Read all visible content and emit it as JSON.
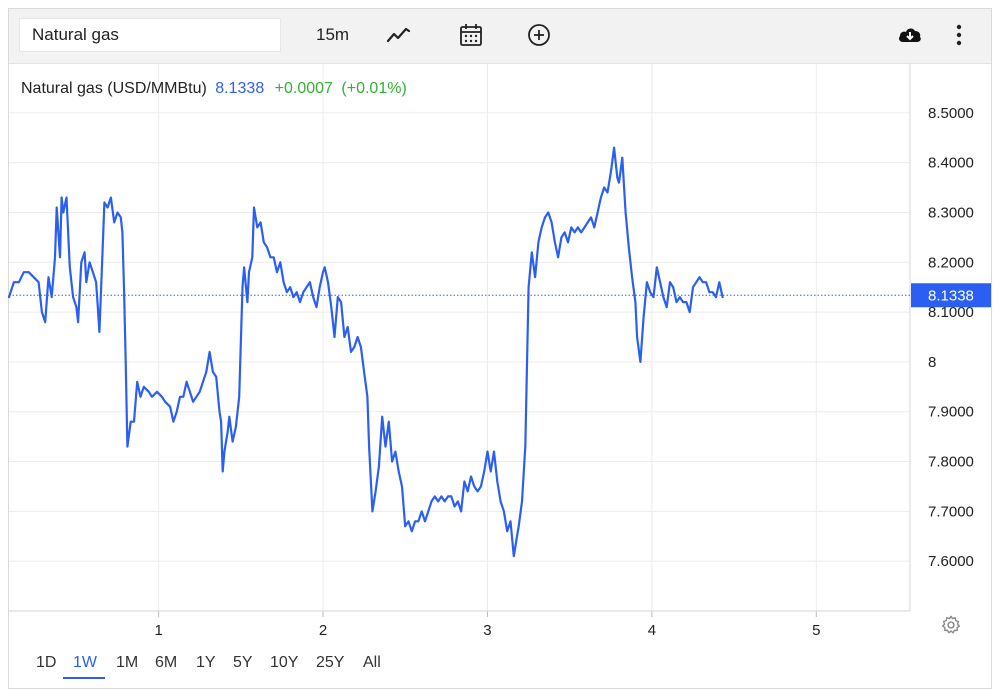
{
  "toolbar": {
    "search_value": "Natural gas",
    "interval": "15m",
    "icons": [
      "line-chart-icon",
      "calendar-icon",
      "add-circle-icon",
      "cloud-download-icon",
      "more-vertical-icon"
    ]
  },
  "legend": {
    "name": "Natural gas (USD/MMBtu)",
    "price": "8.1338",
    "change": "+0.0007",
    "change_pct": "(+0.01%)"
  },
  "ranges": [
    "1D",
    "1W",
    "1M",
    "6M",
    "1Y",
    "5Y",
    "10Y",
    "25Y",
    "All"
  ],
  "active_range": "1W",
  "colors": {
    "line": "#2a5ff2",
    "positive": "#32b233",
    "grid": "#ececec"
  },
  "chart_data": {
    "type": "line",
    "x_ticks": [
      {
        "x": 1,
        "label": "1"
      },
      {
        "x": 2,
        "label": "2"
      },
      {
        "x": 3,
        "label": "3"
      },
      {
        "x": 4,
        "label": "4"
      },
      {
        "x": 5,
        "label": "5"
      }
    ],
    "xlim": [
      0.09,
      5.57
    ],
    "ylim": [
      7.5,
      8.6
    ],
    "y_ticks": [
      7.6,
      7.7,
      7.8,
      7.9,
      8.0,
      8.1,
      8.2,
      8.3,
      8.4,
      8.5
    ],
    "y_tick_labels": [
      "7.6000",
      "7.7000",
      "7.8000",
      "7.9000",
      "8",
      "8.1000",
      "8.2000",
      "8.3000",
      "8.4000",
      "8.5000"
    ],
    "last_value": 8.1338,
    "last_label": "8.1338",
    "grid": true,
    "series": [
      {
        "values": [
          [
            0.09,
            8.13
          ],
          [
            0.12,
            8.16
          ],
          [
            0.15,
            8.16
          ],
          [
            0.18,
            8.18
          ],
          [
            0.21,
            8.18
          ],
          [
            0.24,
            8.17
          ],
          [
            0.27,
            8.16
          ],
          [
            0.29,
            8.1
          ],
          [
            0.31,
            8.08
          ],
          [
            0.33,
            8.17
          ],
          [
            0.35,
            8.13
          ],
          [
            0.37,
            8.21
          ],
          [
            0.38,
            8.31
          ],
          [
            0.4,
            8.21
          ],
          [
            0.41,
            8.33
          ],
          [
            0.42,
            8.3
          ],
          [
            0.44,
            8.33
          ],
          [
            0.46,
            8.19
          ],
          [
            0.48,
            8.13
          ],
          [
            0.5,
            8.11
          ],
          [
            0.51,
            8.08
          ],
          [
            0.53,
            8.2
          ],
          [
            0.55,
            8.22
          ],
          [
            0.56,
            8.16
          ],
          [
            0.58,
            8.2
          ],
          [
            0.6,
            8.18
          ],
          [
            0.62,
            8.16
          ],
          [
            0.63,
            8.11
          ],
          [
            0.64,
            8.06
          ],
          [
            0.66,
            8.23
          ],
          [
            0.67,
            8.32
          ],
          [
            0.69,
            8.31
          ],
          [
            0.71,
            8.33
          ],
          [
            0.73,
            8.28
          ],
          [
            0.75,
            8.3
          ],
          [
            0.77,
            8.29
          ],
          [
            0.78,
            8.26
          ],
          [
            0.79,
            8.14
          ],
          [
            0.8,
            8.0
          ],
          [
            0.81,
            7.83
          ],
          [
            0.83,
            7.88
          ],
          [
            0.85,
            7.88
          ],
          [
            0.87,
            7.96
          ],
          [
            0.89,
            7.93
          ],
          [
            0.91,
            7.95
          ],
          [
            0.94,
            7.94
          ],
          [
            0.96,
            7.93
          ],
          [
            0.99,
            7.94
          ],
          [
            1.02,
            7.93
          ],
          [
            1.04,
            7.92
          ],
          [
            1.07,
            7.91
          ],
          [
            1.09,
            7.88
          ],
          [
            1.11,
            7.9
          ],
          [
            1.13,
            7.93
          ],
          [
            1.15,
            7.93
          ],
          [
            1.17,
            7.96
          ],
          [
            1.19,
            7.94
          ],
          [
            1.21,
            7.92
          ],
          [
            1.23,
            7.93
          ],
          [
            1.25,
            7.94
          ],
          [
            1.27,
            7.96
          ],
          [
            1.29,
            7.98
          ],
          [
            1.31,
            8.02
          ],
          [
            1.33,
            7.98
          ],
          [
            1.35,
            7.97
          ],
          [
            1.37,
            7.9
          ],
          [
            1.38,
            7.88
          ],
          [
            1.39,
            7.78
          ],
          [
            1.4,
            7.82
          ],
          [
            1.42,
            7.86
          ],
          [
            1.43,
            7.89
          ],
          [
            1.45,
            7.84
          ],
          [
            1.47,
            7.87
          ],
          [
            1.49,
            7.93
          ],
          [
            1.51,
            8.15
          ],
          [
            1.52,
            8.19
          ],
          [
            1.54,
            8.12
          ],
          [
            1.55,
            8.18
          ],
          [
            1.57,
            8.21
          ],
          [
            1.58,
            8.31
          ],
          [
            1.6,
            8.27
          ],
          [
            1.62,
            8.28
          ],
          [
            1.64,
            8.24
          ],
          [
            1.66,
            8.23
          ],
          [
            1.68,
            8.21
          ],
          [
            1.7,
            8.21
          ],
          [
            1.72,
            8.18
          ],
          [
            1.74,
            8.2
          ],
          [
            1.76,
            8.16
          ],
          [
            1.78,
            8.14
          ],
          [
            1.8,
            8.15
          ],
          [
            1.82,
            8.13
          ],
          [
            1.84,
            8.14
          ],
          [
            1.86,
            8.12
          ],
          [
            1.88,
            8.14
          ],
          [
            1.9,
            8.15
          ],
          [
            1.92,
            8.16
          ],
          [
            1.94,
            8.13
          ],
          [
            1.96,
            8.11
          ],
          [
            1.98,
            8.15
          ],
          [
            2.0,
            8.18
          ],
          [
            2.01,
            8.19
          ],
          [
            2.03,
            8.16
          ],
          [
            2.05,
            8.11
          ],
          [
            2.07,
            8.05
          ],
          [
            2.09,
            8.13
          ],
          [
            2.11,
            8.12
          ],
          [
            2.13,
            8.05
          ],
          [
            2.15,
            8.07
          ],
          [
            2.17,
            8.02
          ],
          [
            2.19,
            8.03
          ],
          [
            2.21,
            8.05
          ],
          [
            2.23,
            8.03
          ],
          [
            2.25,
            7.98
          ],
          [
            2.27,
            7.93
          ],
          [
            2.28,
            7.83
          ],
          [
            2.3,
            7.7
          ],
          [
            2.32,
            7.74
          ],
          [
            2.34,
            7.79
          ],
          [
            2.36,
            7.89
          ],
          [
            2.38,
            7.83
          ],
          [
            2.4,
            7.88
          ],
          [
            2.42,
            7.8
          ],
          [
            2.44,
            7.82
          ],
          [
            2.46,
            7.78
          ],
          [
            2.48,
            7.75
          ],
          [
            2.5,
            7.67
          ],
          [
            2.52,
            7.68
          ],
          [
            2.54,
            7.66
          ],
          [
            2.56,
            7.68
          ],
          [
            2.58,
            7.68
          ],
          [
            2.6,
            7.7
          ],
          [
            2.62,
            7.68
          ],
          [
            2.64,
            7.7
          ],
          [
            2.66,
            7.72
          ],
          [
            2.68,
            7.73
          ],
          [
            2.7,
            7.72
          ],
          [
            2.72,
            7.73
          ],
          [
            2.74,
            7.72
          ],
          [
            2.76,
            7.73
          ],
          [
            2.78,
            7.73
          ],
          [
            2.8,
            7.71
          ],
          [
            2.82,
            7.72
          ],
          [
            2.84,
            7.7
          ],
          [
            2.86,
            7.76
          ],
          [
            2.88,
            7.74
          ],
          [
            2.9,
            7.77
          ],
          [
            2.92,
            7.75
          ],
          [
            2.94,
            7.74
          ],
          [
            2.96,
            7.75
          ],
          [
            2.98,
            7.78
          ],
          [
            3.0,
            7.82
          ],
          [
            3.02,
            7.78
          ],
          [
            3.04,
            7.82
          ],
          [
            3.06,
            7.76
          ],
          [
            3.08,
            7.72
          ],
          [
            3.1,
            7.7
          ],
          [
            3.12,
            7.66
          ],
          [
            3.14,
            7.68
          ],
          [
            3.16,
            7.61
          ],
          [
            3.18,
            7.65
          ],
          [
            3.19,
            7.67
          ],
          [
            3.21,
            7.72
          ],
          [
            3.23,
            7.83
          ],
          [
            3.25,
            8.15
          ],
          [
            3.27,
            8.22
          ],
          [
            3.29,
            8.17
          ],
          [
            3.31,
            8.24
          ],
          [
            3.33,
            8.27
          ],
          [
            3.35,
            8.29
          ],
          [
            3.37,
            8.3
          ],
          [
            3.39,
            8.28
          ],
          [
            3.41,
            8.24
          ],
          [
            3.43,
            8.21
          ],
          [
            3.45,
            8.25
          ],
          [
            3.47,
            8.26
          ],
          [
            3.49,
            8.24
          ],
          [
            3.51,
            8.27
          ],
          [
            3.53,
            8.26
          ],
          [
            3.55,
            8.27
          ],
          [
            3.57,
            8.26
          ],
          [
            3.59,
            8.27
          ],
          [
            3.61,
            8.28
          ],
          [
            3.63,
            8.29
          ],
          [
            3.65,
            8.27
          ],
          [
            3.67,
            8.3
          ],
          [
            3.69,
            8.33
          ],
          [
            3.71,
            8.35
          ],
          [
            3.73,
            8.34
          ],
          [
            3.75,
            8.38
          ],
          [
            3.77,
            8.43
          ],
          [
            3.79,
            8.37
          ],
          [
            3.8,
            8.36
          ],
          [
            3.82,
            8.41
          ],
          [
            3.84,
            8.3
          ],
          [
            3.86,
            8.23
          ],
          [
            3.88,
            8.17
          ],
          [
            3.9,
            8.12
          ],
          [
            3.91,
            8.05
          ],
          [
            3.93,
            8.0
          ],
          [
            3.95,
            8.09
          ],
          [
            3.97,
            8.16
          ],
          [
            3.99,
            8.14
          ],
          [
            4.01,
            8.13
          ],
          [
            4.03,
            8.19
          ],
          [
            4.05,
            8.16
          ],
          [
            4.07,
            8.13
          ],
          [
            4.09,
            8.11
          ],
          [
            4.11,
            8.16
          ],
          [
            4.13,
            8.15
          ],
          [
            4.15,
            8.12
          ],
          [
            4.17,
            8.13
          ],
          [
            4.19,
            8.12
          ],
          [
            4.21,
            8.12
          ],
          [
            4.23,
            8.1
          ],
          [
            4.25,
            8.15
          ],
          [
            4.27,
            8.16
          ],
          [
            4.29,
            8.17
          ],
          [
            4.31,
            8.16
          ],
          [
            4.33,
            8.16
          ],
          [
            4.35,
            8.14
          ],
          [
            4.37,
            8.14
          ],
          [
            4.39,
            8.13
          ],
          [
            4.41,
            8.16
          ],
          [
            4.43,
            8.13
          ]
        ]
      }
    ]
  }
}
